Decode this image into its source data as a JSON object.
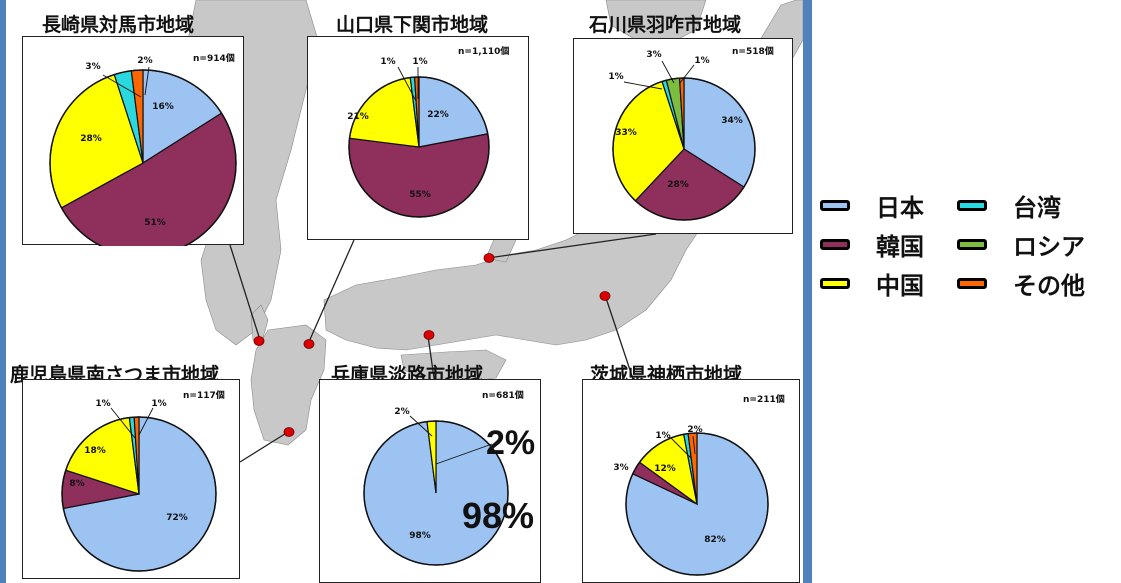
{
  "colors": {
    "japan": "#9cc3f2",
    "korea": "#8e2f5c",
    "china": "#ffff00",
    "taiwan": "#2ad8e0",
    "russia": "#7cbc3e",
    "other": "#ff6600",
    "land": "#c8c8c8",
    "marker": "#dd0000"
  },
  "legend": {
    "items": [
      {
        "key": "japan",
        "label": "日本"
      },
      {
        "key": "korea",
        "label": "韓国"
      },
      {
        "key": "china",
        "label": "中国"
      },
      {
        "key": "taiwan",
        "label": "台湾"
      },
      {
        "key": "russia",
        "label": "ロシア"
      },
      {
        "key": "other",
        "label": "その他"
      }
    ]
  },
  "chart_data": [
    {
      "type": "pie",
      "title": "長崎県対馬市地域",
      "n_label": "n=914個",
      "slices": [
        {
          "series": "japan",
          "value": 16,
          "label": "16%"
        },
        {
          "series": "korea",
          "value": 51,
          "label": "51%"
        },
        {
          "series": "china",
          "value": 28,
          "label": "28%"
        },
        {
          "series": "taiwan",
          "value": 3,
          "label": "3%"
        },
        {
          "series": "other",
          "value": 2,
          "label": "2%"
        }
      ]
    },
    {
      "type": "pie",
      "title": "山口県下関市地域",
      "n_label": "n=1,110個",
      "slices": [
        {
          "series": "japan",
          "value": 22,
          "label": "22%"
        },
        {
          "series": "korea",
          "value": 55,
          "label": "55%"
        },
        {
          "series": "china",
          "value": 21,
          "label": "21%"
        },
        {
          "series": "taiwan",
          "value": 1,
          "label": "1%"
        },
        {
          "series": "other",
          "value": 1,
          "label": "1%"
        }
      ]
    },
    {
      "type": "pie",
      "title": "石川県羽咋市地域",
      "n_label": "n=518個",
      "slices": [
        {
          "series": "japan",
          "value": 34,
          "label": "34%"
        },
        {
          "series": "korea",
          "value": 28,
          "label": "28%"
        },
        {
          "series": "china",
          "value": 33,
          "label": "33%"
        },
        {
          "series": "taiwan",
          "value": 1,
          "label": "1%"
        },
        {
          "series": "russia",
          "value": 3,
          "label": "3%"
        },
        {
          "series": "other",
          "value": 1,
          "label": "1%"
        }
      ]
    },
    {
      "type": "pie",
      "title": "鹿児島県南さつま市地域",
      "n_label": "n=117個",
      "slices": [
        {
          "series": "japan",
          "value": 72,
          "label": "72%"
        },
        {
          "series": "korea",
          "value": 8,
          "label": "8%"
        },
        {
          "series": "china",
          "value": 18,
          "label": "18%"
        },
        {
          "series": "taiwan",
          "value": 1,
          "label": "1%"
        },
        {
          "series": "other",
          "value": 1,
          "label": "1%"
        }
      ]
    },
    {
      "type": "pie",
      "title": "兵庫県淡路市地域",
      "n_label": "n=681個",
      "slices": [
        {
          "series": "japan",
          "value": 98,
          "label": "98%"
        },
        {
          "series": "china",
          "value": 2,
          "label": "2%"
        }
      ],
      "annotations": [
        "2%",
        "98%"
      ]
    },
    {
      "type": "pie",
      "title": "茨城県神栖市地域",
      "n_label": "n=211個",
      "slices": [
        {
          "series": "japan",
          "value": 82,
          "label": "82%"
        },
        {
          "series": "korea",
          "value": 3,
          "label": "3%"
        },
        {
          "series": "china",
          "value": 12,
          "label": "12%"
        },
        {
          "series": "taiwan",
          "value": 1,
          "label": "1%"
        },
        {
          "series": "other",
          "value": 2,
          "label": "2%"
        }
      ]
    }
  ]
}
